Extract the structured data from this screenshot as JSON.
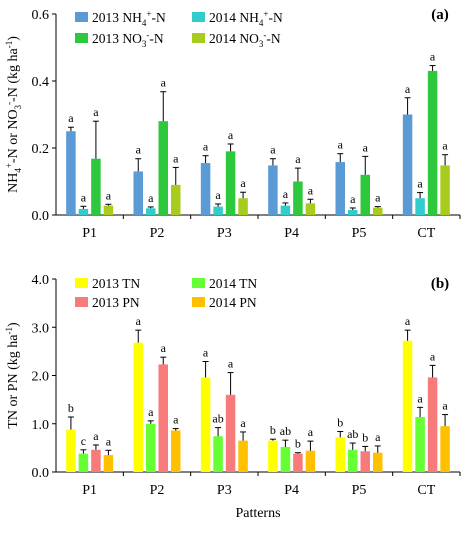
{
  "chart_data": [
    {
      "type": "bar",
      "panel_label": "(a)",
      "ylabel_html": "NH<tspan dy='-5' font-size='10'>4</tspan><tspan dy='-0' font-size='10'>+</tspan><tspan dy='5'>-N or NO</tspan><tspan dy='4' font-size='10'>3</tspan><tspan dy='-9' font-size='10'>-</tspan><tspan dy='5'>-N (kg ha</tspan><tspan dy='-5' font-size='10'>-1</tspan><tspan dy='5'>)</tspan>",
      "ylabel": "NH4+-N or NO3--N (kg ha-1)",
      "ylim": [
        0,
        0.6
      ],
      "yticks": [
        "0.0",
        "0.2",
        "0.4",
        "0.6"
      ],
      "ytick_values": [
        0,
        0.2,
        0.4,
        0.6
      ],
      "categories": [
        "P1",
        "P2",
        "P3",
        "P4",
        "P5",
        "CT"
      ],
      "series": [
        {
          "name": "2013 NH4+-N",
          "legend": {
            "pre": "2013 NH",
            "sub": "4",
            "sup": "+",
            "post": "-N"
          },
          "color": "#5B9BD5",
          "values": [
            0.25,
            0.13,
            0.155,
            0.148,
            0.158,
            0.3
          ],
          "errors": [
            0.012,
            0.038,
            0.022,
            0.02,
            0.025,
            0.05
          ],
          "letters": [
            "a",
            "a",
            "a",
            "a",
            "a",
            "a"
          ]
        },
        {
          "name": "2014 NH4+-N",
          "legend": {
            "pre": "2014 NH",
            "sub": "4",
            "sup": "+",
            "post": "-N"
          },
          "color": "#33CCCC",
          "values": [
            0.018,
            0.02,
            0.025,
            0.028,
            0.015,
            0.05
          ],
          "errors": [
            0.008,
            0.004,
            0.008,
            0.008,
            0.006,
            0.017
          ],
          "letters": [
            "a",
            "a",
            "a",
            "a",
            "a",
            "a"
          ]
        },
        {
          "name": "2013 NO3--N",
          "legend": {
            "pre": "2013 NO",
            "sub": "3",
            "sup": "-",
            "post": "-N"
          },
          "color": "#2DC83C",
          "values": [
            0.168,
            0.28,
            0.19,
            0.1,
            0.12,
            0.43
          ],
          "errors": [
            0.112,
            0.088,
            0.022,
            0.04,
            0.055,
            0.016
          ],
          "letters": [
            "a",
            "a",
            "a",
            "a",
            "a",
            "a"
          ]
        },
        {
          "name": "2014 NO3--N",
          "legend": {
            "pre": "2014 NO",
            "sub": "3",
            "sup": "-",
            "post": "-N"
          },
          "color": "#A8CC1E",
          "values": [
            0.028,
            0.09,
            0.05,
            0.035,
            0.022,
            0.148
          ],
          "errors": [
            0.004,
            0.052,
            0.018,
            0.012,
            0.003,
            0.032
          ],
          "letters": [
            "a",
            "a",
            "a",
            "a",
            "a",
            "a"
          ]
        }
      ],
      "legend_position": "top-left"
    },
    {
      "type": "bar",
      "panel_label": "(b)",
      "ylabel": "TN or PN (kg ha-1)",
      "ylabel_main": "TN or PN (kg ha",
      "ylabel_sup": "-1",
      "ylabel_end": ")",
      "xlabel": "Patterns",
      "ylim": [
        0,
        4.0
      ],
      "yticks": [
        "0.0",
        "1.0",
        "2.0",
        "3.0",
        "4.0"
      ],
      "ytick_values": [
        0,
        1,
        2,
        3,
        4
      ],
      "categories": [
        "P1",
        "P2",
        "P3",
        "P4",
        "P5",
        "CT"
      ],
      "series": [
        {
          "name": "2013 TN",
          "legend": {
            "pre": "2013 TN",
            "sub": "",
            "sup": "",
            "post": ""
          },
          "color": "#FFFF00",
          "values": [
            0.88,
            2.68,
            1.96,
            0.65,
            0.72,
            2.72
          ],
          "errors": [
            0.26,
            0.26,
            0.33,
            0.03,
            0.12,
            0.22
          ],
          "letters": [
            "b",
            "a",
            "a",
            "b",
            "b",
            "a"
          ]
        },
        {
          "name": "2014 TN",
          "legend": {
            "pre": "2014 TN",
            "sub": "",
            "sup": "",
            "post": ""
          },
          "color": "#66FF33",
          "values": [
            0.38,
            1.0,
            0.74,
            0.52,
            0.46,
            1.14
          ],
          "errors": [
            0.08,
            0.06,
            0.18,
            0.14,
            0.14,
            0.2
          ],
          "letters": [
            "c",
            "a",
            "ab",
            "ab",
            "ab",
            "a"
          ]
        },
        {
          "name": "2013 PN",
          "legend": {
            "pre": "2013 PN",
            "sub": "",
            "sup": "",
            "post": ""
          },
          "color": "#F77B7B",
          "values": [
            0.46,
            2.23,
            1.6,
            0.38,
            0.43,
            1.96
          ],
          "errors": [
            0.1,
            0.15,
            0.46,
            0.02,
            0.1,
            0.25
          ],
          "letters": [
            "a",
            "a",
            "a",
            "b",
            "b",
            "a"
          ]
        },
        {
          "name": "2014 PN",
          "legend": {
            "pre": "2014 PN",
            "sub": "",
            "sup": "",
            "post": ""
          },
          "color": "#FFC000",
          "values": [
            0.35,
            0.86,
            0.65,
            0.44,
            0.4,
            0.95
          ],
          "errors": [
            0.1,
            0.04,
            0.18,
            0.2,
            0.14,
            0.24
          ],
          "letters": [
            "a",
            "a",
            "a",
            "a",
            "a",
            "a"
          ]
        }
      ],
      "legend_position": "top-left"
    }
  ]
}
